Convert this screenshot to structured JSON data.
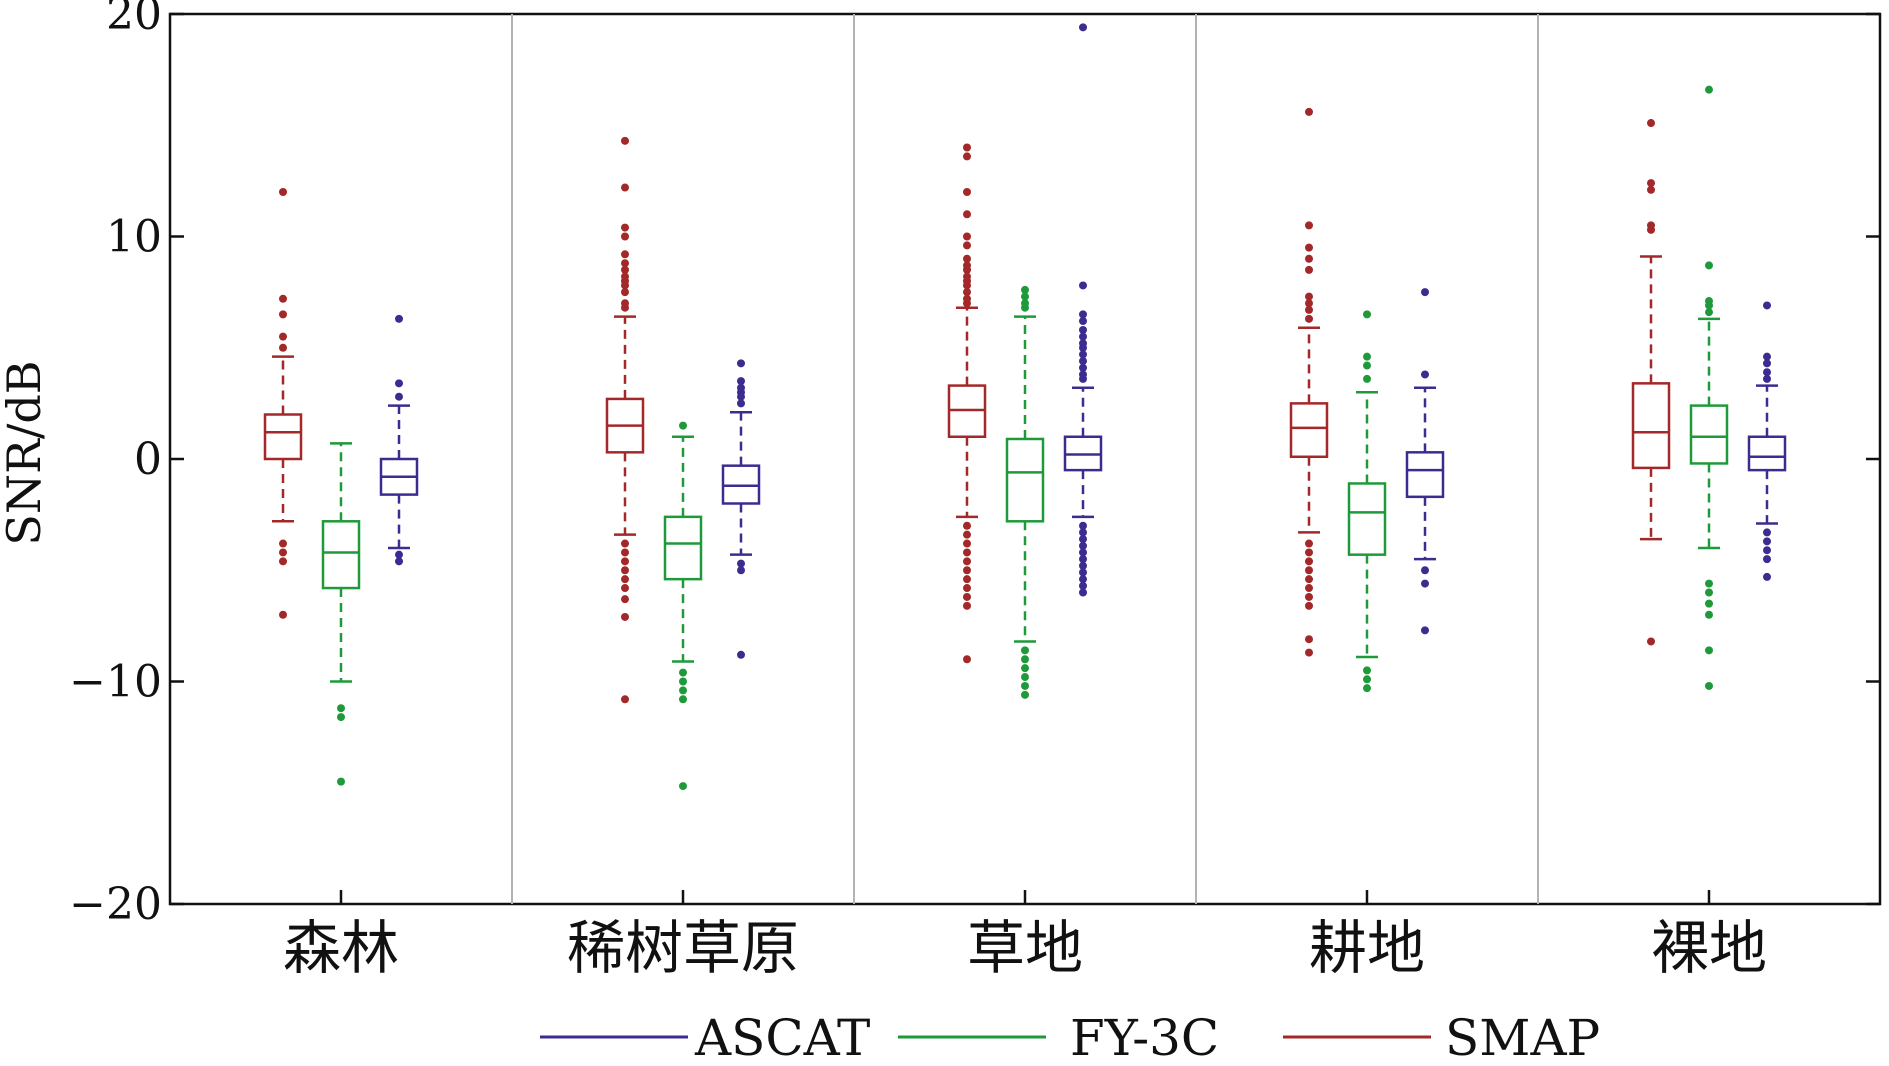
{
  "chart_data": {
    "type": "box",
    "title": "",
    "xlabel": "",
    "ylabel": "SNR/dB",
    "ylim": [
      -20,
      20
    ],
    "yticks": [
      20,
      10,
      0,
      -10,
      -20
    ],
    "ytick_labels": [
      "20",
      "10",
      "0",
      "−10",
      "−20"
    ],
    "categories": [
      "森林",
      "稀树草原",
      "草地",
      "耕地",
      "裸地"
    ],
    "separators": true,
    "legend": {
      "position": "bottom",
      "order": [
        "ASCAT",
        "FY-3C",
        "SMAP"
      ]
    },
    "series": [
      {
        "name": "SMAP",
        "color": "#a3282a",
        "boxes": [
          {
            "q1": 0.0,
            "median": 1.2,
            "q3": 2.0,
            "whisker_low": -2.8,
            "whisker_high": 4.6,
            "outliers": [
              12.0,
              7.2,
              6.5,
              5.5,
              5.0,
              -3.8,
              -4.2,
              -4.6,
              -7.0
            ]
          },
          {
            "q1": 0.3,
            "median": 1.5,
            "q3": 2.7,
            "whisker_low": -3.4,
            "whisker_high": 6.4,
            "outliers": [
              14.3,
              12.2,
              10.4,
              10.0,
              9.2,
              8.8,
              8.5,
              8.2,
              8.0,
              7.8,
              7.5,
              7.0,
              6.8,
              -3.8,
              -4.2,
              -4.6,
              -5.0,
              -5.4,
              -5.8,
              -6.3,
              -7.1,
              -10.8
            ]
          },
          {
            "q1": 1.0,
            "median": 2.2,
            "q3": 3.3,
            "whisker_low": -2.6,
            "whisker_high": 6.8,
            "outliers": [
              14.0,
              13.6,
              12.0,
              11.0,
              10.0,
              9.6,
              9.0,
              8.7,
              8.5,
              8.2,
              8.0,
              7.8,
              7.5,
              7.2,
              7.0,
              -3.0,
              -3.4,
              -3.8,
              -4.2,
              -4.6,
              -5.0,
              -5.4,
              -5.8,
              -6.2,
              -6.6,
              -9.0
            ]
          },
          {
            "q1": 0.1,
            "median": 1.4,
            "q3": 2.5,
            "whisker_low": -3.3,
            "whisker_high": 5.9,
            "outliers": [
              15.6,
              10.5,
              9.5,
              9.0,
              8.5,
              7.3,
              7.0,
              6.7,
              6.3,
              -3.8,
              -4.2,
              -4.6,
              -5.0,
              -5.4,
              -5.8,
              -6.2,
              -6.6,
              -8.1,
              -8.7
            ]
          },
          {
            "q1": -0.4,
            "median": 1.2,
            "q3": 3.4,
            "whisker_low": -3.6,
            "whisker_high": 9.1,
            "outliers": [
              15.1,
              12.4,
              12.1,
              10.5,
              10.3,
              -8.2
            ]
          }
        ]
      },
      {
        "name": "FY-3C",
        "color": "#1f9a3a",
        "boxes": [
          {
            "q1": -5.8,
            "median": -4.2,
            "q3": -2.8,
            "whisker_low": -10.0,
            "whisker_high": 0.7,
            "outliers": [
              -11.2,
              -11.6,
              -14.5
            ]
          },
          {
            "q1": -5.4,
            "median": -3.8,
            "q3": -2.6,
            "whisker_low": -9.1,
            "whisker_high": 1.0,
            "outliers": [
              1.5,
              -9.6,
              -10.0,
              -10.4,
              -10.8,
              -14.7
            ]
          },
          {
            "q1": -2.8,
            "median": -0.6,
            "q3": 0.9,
            "whisker_low": -8.2,
            "whisker_high": 6.4,
            "outliers": [
              7.6,
              7.3,
              7.0,
              6.8,
              -8.6,
              -9.0,
              -9.4,
              -9.8,
              -10.2,
              -10.6
            ]
          },
          {
            "q1": -4.3,
            "median": -2.4,
            "q3": -1.1,
            "whisker_low": -8.9,
            "whisker_high": 3.0,
            "outliers": [
              6.5,
              4.6,
              4.2,
              3.6,
              -9.5,
              -9.9,
              -10.3
            ]
          },
          {
            "q1": -0.2,
            "median": 1.0,
            "q3": 2.4,
            "whisker_low": -4.0,
            "whisker_high": 6.3,
            "outliers": [
              16.6,
              8.7,
              7.1,
              6.9,
              6.6,
              -5.6,
              -6.0,
              -6.5,
              -7.0,
              -8.6,
              -10.2
            ]
          }
        ]
      },
      {
        "name": "ASCAT",
        "color": "#3b2d8f",
        "boxes": [
          {
            "q1": -1.6,
            "median": -0.8,
            "q3": 0.0,
            "whisker_low": -4.0,
            "whisker_high": 2.4,
            "outliers": [
              6.3,
              3.4,
              2.8,
              -4.3,
              -4.6
            ]
          },
          {
            "q1": -2.0,
            "median": -1.2,
            "q3": -0.3,
            "whisker_low": -4.3,
            "whisker_high": 2.1,
            "outliers": [
              4.3,
              3.5,
              3.2,
              3.0,
              2.8,
              2.5,
              -4.7,
              -5.0,
              -8.8
            ]
          },
          {
            "q1": -0.5,
            "median": 0.2,
            "q3": 1.0,
            "whisker_low": -2.6,
            "whisker_high": 3.2,
            "outliers": [
              19.4,
              7.8,
              6.5,
              6.2,
              5.8,
              5.5,
              5.2,
              5.0,
              4.7,
              4.4,
              4.1,
              3.8,
              3.6,
              -3.0,
              -3.3,
              -3.6,
              -3.9,
              -4.2,
              -4.5,
              -4.8,
              -5.1,
              -5.4,
              -5.7,
              -6.0
            ]
          },
          {
            "q1": -1.7,
            "median": -0.5,
            "q3": 0.3,
            "whisker_low": -4.5,
            "whisker_high": 3.2,
            "outliers": [
              7.5,
              3.8,
              -5.0,
              -5.6,
              -7.7
            ]
          },
          {
            "q1": -0.5,
            "median": 0.1,
            "q3": 1.0,
            "whisker_low": -2.9,
            "whisker_high": 3.3,
            "outliers": [
              6.9,
              4.6,
              4.3,
              3.9,
              3.6,
              -3.3,
              -3.7,
              -4.1,
              -4.5,
              -5.3
            ]
          }
        ]
      }
    ]
  }
}
